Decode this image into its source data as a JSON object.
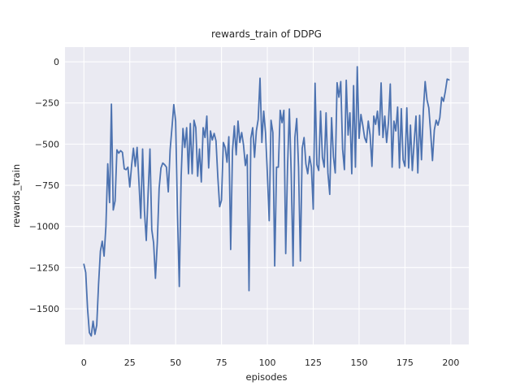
{
  "figure": {
    "title": "rewards_train of DDPG",
    "xlabel": "episodes",
    "ylabel": "rewards_train"
  },
  "chart_data": {
    "type": "line",
    "title": "rewards_train of DDPG",
    "xlabel": "episodes",
    "ylabel": "rewards_train",
    "grid": true,
    "legend_position": "none",
    "background_color": "#EAEAF2",
    "gridline_color": "#FFFFFF",
    "line_color": "#4C72B0",
    "text_color": "#262626",
    "xlim": [
      -10.3,
      209.8
    ],
    "ylim": [
      -1717,
      89
    ],
    "xticks": [
      0,
      25,
      50,
      75,
      100,
      125,
      150,
      175,
      200
    ],
    "xtick_labels": [
      "0",
      "25",
      "50",
      "75",
      "100",
      "125",
      "150",
      "175",
      "200"
    ],
    "yticks": [
      0,
      -250,
      -500,
      -750,
      -1000,
      -1250,
      -1500
    ],
    "ytick_labels": [
      "0",
      "−250",
      "−500",
      "−750",
      "−1000",
      "−1250",
      "−1500"
    ],
    "series": [
      {
        "name": "rewards_train",
        "x_start": 0,
        "x_step": 1,
        "values": [
          -1230,
          -1280,
          -1500,
          -1645,
          -1665,
          -1575,
          -1655,
          -1600,
          -1350,
          -1150,
          -1090,
          -1180,
          -1000,
          -620,
          -855,
          -257,
          -900,
          -845,
          -535,
          -555,
          -540,
          -550,
          -650,
          -655,
          -640,
          -760,
          -630,
          -525,
          -635,
          -520,
          -730,
          -950,
          -530,
          -905,
          -1085,
          -800,
          -530,
          -1020,
          -1100,
          -1315,
          -1100,
          -770,
          -645,
          -615,
          -625,
          -640,
          -790,
          -535,
          -400,
          -260,
          -360,
          -920,
          -1365,
          -700,
          -405,
          -520,
          -400,
          -680,
          -375,
          -680,
          -355,
          -400,
          -695,
          -530,
          -730,
          -400,
          -460,
          -330,
          -645,
          -420,
          -475,
          -435,
          -480,
          -700,
          -880,
          -840,
          -490,
          -520,
          -610,
          -455,
          -1140,
          -540,
          -390,
          -565,
          -360,
          -490,
          -430,
          -505,
          -630,
          -565,
          -1390,
          -465,
          -400,
          -580,
          -420,
          -350,
          -100,
          -490,
          -300,
          -430,
          -680,
          -965,
          -355,
          -430,
          -1240,
          -640,
          -640,
          -295,
          -370,
          -295,
          -1165,
          -640,
          -287,
          -680,
          -1240,
          -460,
          -345,
          -640,
          -1210,
          -525,
          -460,
          -620,
          -680,
          -575,
          -640,
          -895,
          -130,
          -625,
          -660,
          -300,
          -580,
          -640,
          -310,
          -675,
          -805,
          -340,
          -575,
          -675,
          -127,
          -215,
          -120,
          -530,
          -655,
          -112,
          -445,
          -310,
          -680,
          -145,
          -640,
          -30,
          -465,
          -320,
          -385,
          -460,
          -490,
          -360,
          -445,
          -635,
          -330,
          -380,
          -300,
          -445,
          -128,
          -460,
          -330,
          -490,
          -368,
          -135,
          -640,
          -360,
          -420,
          -275,
          -645,
          -285,
          -595,
          -635,
          -280,
          -645,
          -385,
          -660,
          -490,
          -330,
          -675,
          -325,
          -595,
          -300,
          -120,
          -230,
          -280,
          -430,
          -600,
          -415,
          -355,
          -385,
          -340,
          -215,
          -240,
          -180,
          -105,
          -110
        ]
      }
    ]
  }
}
